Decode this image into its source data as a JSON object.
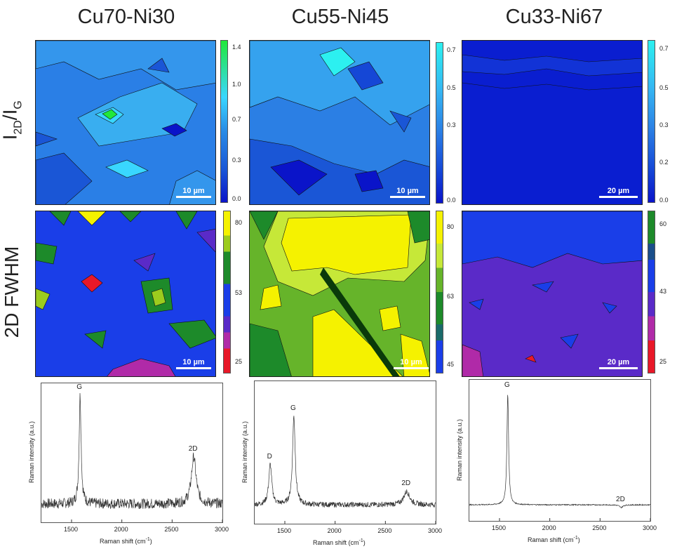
{
  "columns": [
    "Cu70-Ni30",
    "Cu55-Ni45",
    "Cu33-Ni67"
  ],
  "row_labels": {
    "ratio_main": "I",
    "ratio_sub1": "2D",
    "ratio_mid": "/I",
    "ratio_sub2": "G",
    "fwhm": "2D FWHM"
  },
  "maps": {
    "ratio": [
      {
        "scalebar": "10 µm",
        "colorbar_ticks": [
          "1.4",
          "1.0",
          "0.7",
          "0.3",
          "0.0"
        ],
        "colors": [
          "#21e83a",
          "#39d7ff",
          "#2a8ee6",
          "#1a56d6",
          "#0a14c9"
        ]
      },
      {
        "scalebar": "10 µm",
        "colorbar_ticks": [
          "0.7",
          "0.5",
          "0.3",
          "0.0"
        ],
        "colors": [
          "#2cf0f0",
          "#35b5f2",
          "#2b7fe4",
          "#1547d6",
          "#0a14c9"
        ]
      },
      {
        "scalebar": "20 µm",
        "colorbar_ticks": [
          "0.7",
          "0.5",
          "0.3",
          "0.2",
          "0.0"
        ],
        "colors": [
          "#2cf0f0",
          "#35b5f2",
          "#2b7fe4",
          "#1547d6",
          "#0a14c9"
        ]
      }
    ],
    "fwhm": [
      {
        "scalebar": "10 µm",
        "colorbar_ticks": [
          "80",
          "53",
          "25"
        ],
        "colors": [
          "#f5f200",
          "#9ccc1e",
          "#1d8a2a",
          "#1a3ee8",
          "#5a2ac8",
          "#b02aa8",
          "#e81828"
        ]
      },
      {
        "scalebar": "10 µm",
        "colorbar_ticks": [
          "80",
          "63",
          "45"
        ],
        "colors": [
          "#f5f200",
          "#c6e838",
          "#66b42a",
          "#1d8a2a",
          "#1a6a6a",
          "#1a3ee8"
        ]
      },
      {
        "scalebar": "20 µm",
        "colorbar_ticks": [
          "60",
          "43",
          "25"
        ],
        "colors": [
          "#1d8a2a",
          "#1a4e8a",
          "#1a3ee8",
          "#5a2ac8",
          "#b02aa8",
          "#e81828"
        ]
      }
    ]
  },
  "chart_data": [
    {
      "type": "line",
      "xlabel": "Raman shift (cm",
      "xlabel_sup": "-1",
      "xlabel_end": ")",
      "ylabel": "Raman intensity (a.u.)",
      "xlim": [
        1200,
        3000
      ],
      "ylim": [
        0,
        1
      ],
      "xticks": [
        "1500",
        "2000",
        "2500",
        "3000"
      ],
      "peaks": [
        {
          "label": "G",
          "x": 1585,
          "height": 0.95,
          "width": 12
        },
        {
          "label": "2D",
          "x": 2715,
          "height": 0.48,
          "width": 28
        }
      ],
      "baseline": 0.12,
      "noise": 0.04
    },
    {
      "type": "line",
      "xlabel": "Raman shift (cm",
      "xlabel_sup": "-1",
      "xlabel_end": ")",
      "ylabel": "Raman intensity (a.u.)",
      "xlim": [
        1200,
        3000
      ],
      "ylim": [
        0,
        1
      ],
      "xticks": [
        "1500",
        "2000",
        "2500",
        "3000"
      ],
      "peaks": [
        {
          "label": "D",
          "x": 1355,
          "height": 0.42,
          "width": 18
        },
        {
          "label": "G",
          "x": 1590,
          "height": 0.78,
          "width": 16
        },
        {
          "label": "2D",
          "x": 2712,
          "height": 0.22,
          "width": 35
        }
      ],
      "baseline": 0.12,
      "noise": 0.02
    },
    {
      "type": "line",
      "xlabel": "Raman shift (cm",
      "xlabel_sup": "-1",
      "xlabel_end": ")",
      "ylabel": "Raman intensity (a.u.)",
      "xlim": [
        1200,
        3000
      ],
      "ylim": [
        0,
        1
      ],
      "xticks": [
        "1500",
        "2000",
        "2500",
        "3000"
      ],
      "peaks": [
        {
          "label": "G",
          "x": 1582,
          "height": 0.94,
          "width": 10
        },
        {
          "label": "2D",
          "x": 2710,
          "height": 0.08,
          "width": 20
        }
      ],
      "baseline": 0.1,
      "noise": 0.004
    }
  ]
}
